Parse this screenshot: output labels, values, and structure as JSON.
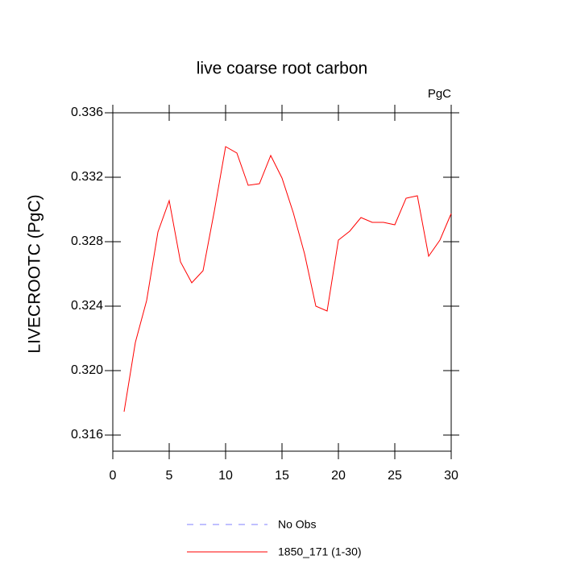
{
  "chart_data": {
    "type": "line",
    "title": "live coarse root carbon",
    "units": "PgC",
    "y_label": "LIVECROOTC  (PgC)",
    "x": [
      1,
      2,
      3,
      4,
      5,
      6,
      7,
      8,
      9,
      10,
      11,
      12,
      13,
      14,
      15,
      16,
      17,
      18,
      19,
      20,
      21,
      22,
      23,
      24,
      25,
      26,
      27,
      28,
      29,
      30
    ],
    "series": [
      {
        "name": "No Obs",
        "color": "#8080ff",
        "dash": true,
        "values": [
          null,
          null,
          null,
          null,
          null,
          null,
          null,
          null,
          null,
          null,
          null,
          null,
          null,
          null,
          null,
          null,
          null,
          null,
          null,
          null,
          null,
          null,
          null,
          null,
          null,
          null,
          null,
          null,
          null,
          null
        ]
      },
      {
        "name": "1850_171 (1-30)",
        "color": "#ff0000",
        "dash": false,
        "values": [
          0.31745,
          0.32175,
          0.32435,
          0.3286,
          0.33055,
          0.32675,
          0.32545,
          0.3262,
          0.3299,
          0.3339,
          0.3335,
          0.3315,
          0.3316,
          0.33335,
          0.33195,
          0.3298,
          0.32725,
          0.324,
          0.3237,
          0.3281,
          0.32865,
          0.3295,
          0.3292,
          0.3292,
          0.32905,
          0.3307,
          0.33085,
          0.3271,
          0.3281,
          0.32975
        ]
      }
    ],
    "xlim": [
      0,
      30
    ],
    "xticks": [
      0,
      5,
      10,
      15,
      20,
      25,
      30
    ],
    "ylim": [
      0.315,
      0.336
    ],
    "yticks": [
      0.316,
      {
        "value": 0.32,
        "label": "0.320"
      },
      0.324,
      0.328,
      0.332,
      0.336
    ]
  }
}
